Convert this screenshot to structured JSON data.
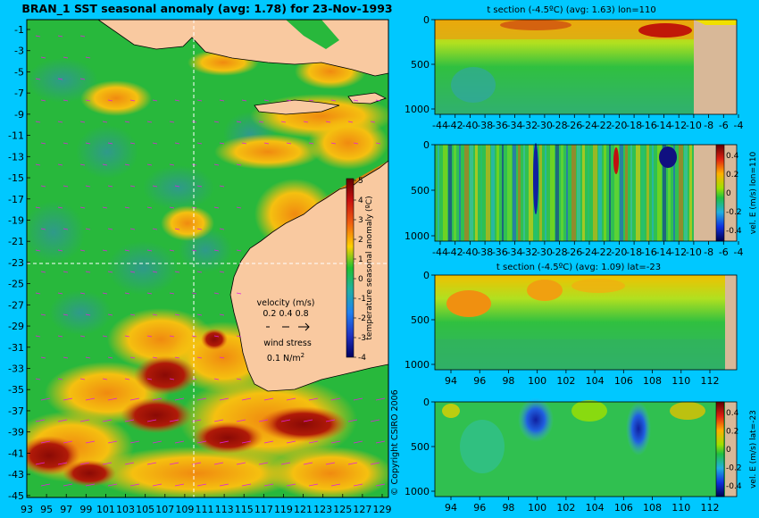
{
  "main_map": {
    "title": "BRAN_1 SST seasonal anomaly (avg: 1.78) for 23-Nov-1993",
    "lon_ticks": [
      "93",
      "95",
      "97",
      "99",
      "101",
      "103",
      "105",
      "107",
      "109",
      "111",
      "113",
      "115",
      "117",
      "119",
      "121",
      "123",
      "125",
      "127",
      "129"
    ],
    "lat_ticks": [
      "-1",
      "-3",
      "-5",
      "-7",
      "-9",
      "-11",
      "-13",
      "-15",
      "-17",
      "-19",
      "-21",
      "-23",
      "-25",
      "-27",
      "-29",
      "-31",
      "-33",
      "-35",
      "-37",
      "-39",
      "-41",
      "-43",
      "-45"
    ],
    "colorbar": {
      "label": "temperature seasonal anomaly (ºC)",
      "ticks": [
        "5",
        "4",
        "3",
        "2",
        "1",
        "0",
        "-1",
        "-2",
        "-3",
        "-4"
      ]
    },
    "legend": {
      "velocity_label": "velocity (m/s)",
      "velocity_values": "0.2 0.4 0.8",
      "wind_label": "wind stress",
      "wind_value": "0.1 N/m",
      "wind_superscript": "2"
    },
    "copyright": "© Copyright CSIRO 2006",
    "colors": {
      "ocean_green": "#22b83a",
      "land": "#f9c9a0",
      "warm_orange": "#ee8a10",
      "hot_red": "#a81a08",
      "cool_teal": "#3fa99a"
    }
  },
  "panels": [
    {
      "id": "t-section-lon110",
      "title": "t section (-4.5ºC) (avg: 1.63) lon=110",
      "x_ticks": [
        "-44",
        "-42",
        "-40",
        "-38",
        "-36",
        "-34",
        "-32",
        "-30",
        "-28",
        "-26",
        "-24",
        "-22",
        "-20",
        "-18",
        "-16",
        "-14",
        "-12",
        "-10",
        "-8",
        "-6",
        "-4"
      ],
      "y_ticks": [
        "0",
        "500",
        "1000"
      ]
    },
    {
      "id": "vel-e-lon110",
      "title": "",
      "x_ticks": [
        "-44",
        "-42",
        "-40",
        "-38",
        "-36",
        "-34",
        "-32",
        "-30",
        "-28",
        "-26",
        "-24",
        "-22",
        "-20",
        "-18",
        "-16",
        "-14",
        "-12",
        "-10",
        "-8",
        "-6",
        "-4"
      ],
      "y_ticks": [
        "0",
        "500",
        "1000"
      ],
      "colorbar_label": "vel. E (m/s) lon=110",
      "colorbar_ticks": [
        "0.4",
        "0.2",
        "0",
        "-0.2",
        "-0.4"
      ]
    },
    {
      "id": "t-section-lat-23",
      "title": "t section (-4.5ºC) (avg: 1.09) lat=-23",
      "x_ticks": [
        "94",
        "96",
        "98",
        "100",
        "102",
        "104",
        "106",
        "108",
        "110",
        "112"
      ],
      "y_ticks": [
        "0",
        "500",
        "1000"
      ]
    },
    {
      "id": "vel-e-lat-23",
      "title": "",
      "x_ticks": [
        "94",
        "96",
        "98",
        "100",
        "102",
        "104",
        "106",
        "108",
        "110",
        "112"
      ],
      "y_ticks": [
        "0",
        "500",
        "1000"
      ],
      "colorbar_label": "vel. E (m/s) lat=-23",
      "colorbar_ticks": [
        "0.4",
        "0.2",
        "0",
        "-0.2",
        "-0.4"
      ]
    }
  ]
}
